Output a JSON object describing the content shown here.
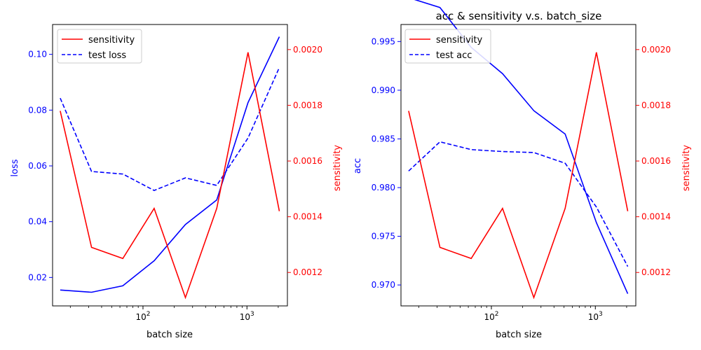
{
  "colors": {
    "left_axis": "#0000ff",
    "right_axis": "#ff0000",
    "sensitivity": "#ff0000",
    "test_series": "#0000ff",
    "train_series": "#0000ff"
  },
  "chart_data": [
    {
      "type": "line",
      "title": "",
      "x_scale": "log",
      "xlabel": "batch size",
      "ylabel_left": "loss",
      "ylabel_right": "sensitivity",
      "x_tick_labels": [
        "10^2",
        "10^3"
      ],
      "x_tick_values": [
        100,
        1000
      ],
      "y_left_ticks": [
        0.02,
        0.04,
        0.06,
        0.08,
        0.1
      ],
      "y_left_tick_labels": [
        "0.02",
        "0.04",
        "0.06",
        "0.08",
        "0.10"
      ],
      "y_right_ticks": [
        0.0012,
        0.0014,
        0.0016,
        0.0018,
        0.002
      ],
      "y_right_tick_labels": [
        "0.0012",
        "0.0014",
        "0.0016",
        "0.0018",
        "0.0020"
      ],
      "x": [
        16,
        32,
        64,
        128,
        256,
        512,
        1024,
        2048
      ],
      "series": [
        {
          "legend_label": "",
          "axis": "left",
          "style": "solid",
          "color": "#0000ff",
          "values": [
            0.0155,
            0.0147,
            0.017,
            0.026,
            0.039,
            0.0478,
            0.0827,
            0.1063
          ]
        },
        {
          "legend_label": "test loss",
          "axis": "left",
          "style": "dashed",
          "color": "#0000ff",
          "values": [
            0.0843,
            0.058,
            0.0571,
            0.0512,
            0.0557,
            0.053,
            0.07,
            0.0953
          ]
        },
        {
          "legend_label": "sensitivity",
          "axis": "right",
          "style": "solid",
          "color": "#ff0000",
          "values": [
            0.00178,
            0.00129,
            0.00125,
            0.00143,
            0.00111,
            0.00143,
            0.00199,
            0.00142
          ]
        }
      ],
      "legend_position": "upper left",
      "legend": [
        "sensitivity",
        "test loss"
      ]
    },
    {
      "type": "line",
      "title": "acc & sensitivity v.s. batch_size",
      "x_scale": "log",
      "xlabel": "batch size",
      "ylabel_left": "acc",
      "ylabel_right": "sensitivity",
      "x_tick_labels": [
        "10^2",
        "10^3"
      ],
      "x_tick_values": [
        100,
        1000
      ],
      "y_left_ticks": [
        0.97,
        0.975,
        0.98,
        0.985,
        0.99,
        0.995
      ],
      "y_left_tick_labels": [
        "0.970",
        "0.975",
        "0.980",
        "0.985",
        "0.990",
        "0.995"
      ],
      "y_right_ticks": [
        0.0012,
        0.0014,
        0.0016,
        0.0018,
        0.002
      ],
      "y_right_tick_labels": [
        "0.0012",
        "0.0014",
        "0.0016",
        "0.0018",
        "0.0020"
      ],
      "x": [
        16,
        32,
        64,
        128,
        256,
        512,
        1024,
        2048
      ],
      "series": [
        {
          "legend_label": "",
          "axis": "left",
          "style": "solid",
          "color": "#0000ff",
          "values": [
            0.9995,
            0.9985,
            0.9944,
            0.9917,
            0.9879,
            0.9855,
            0.9764,
            0.9691
          ]
        },
        {
          "legend_label": "test acc",
          "axis": "left",
          "style": "dashed",
          "color": "#0000ff",
          "values": [
            0.9817,
            0.9847,
            0.9839,
            0.9837,
            0.9836,
            0.9825,
            0.978,
            0.9719
          ]
        },
        {
          "legend_label": "sensitivity",
          "axis": "right",
          "style": "solid",
          "color": "#ff0000",
          "values": [
            0.00178,
            0.00129,
            0.00125,
            0.00143,
            0.00111,
            0.00143,
            0.00199,
            0.00142
          ]
        }
      ],
      "legend_position": "upper left",
      "legend": [
        "sensitivity",
        "test acc"
      ]
    }
  ]
}
